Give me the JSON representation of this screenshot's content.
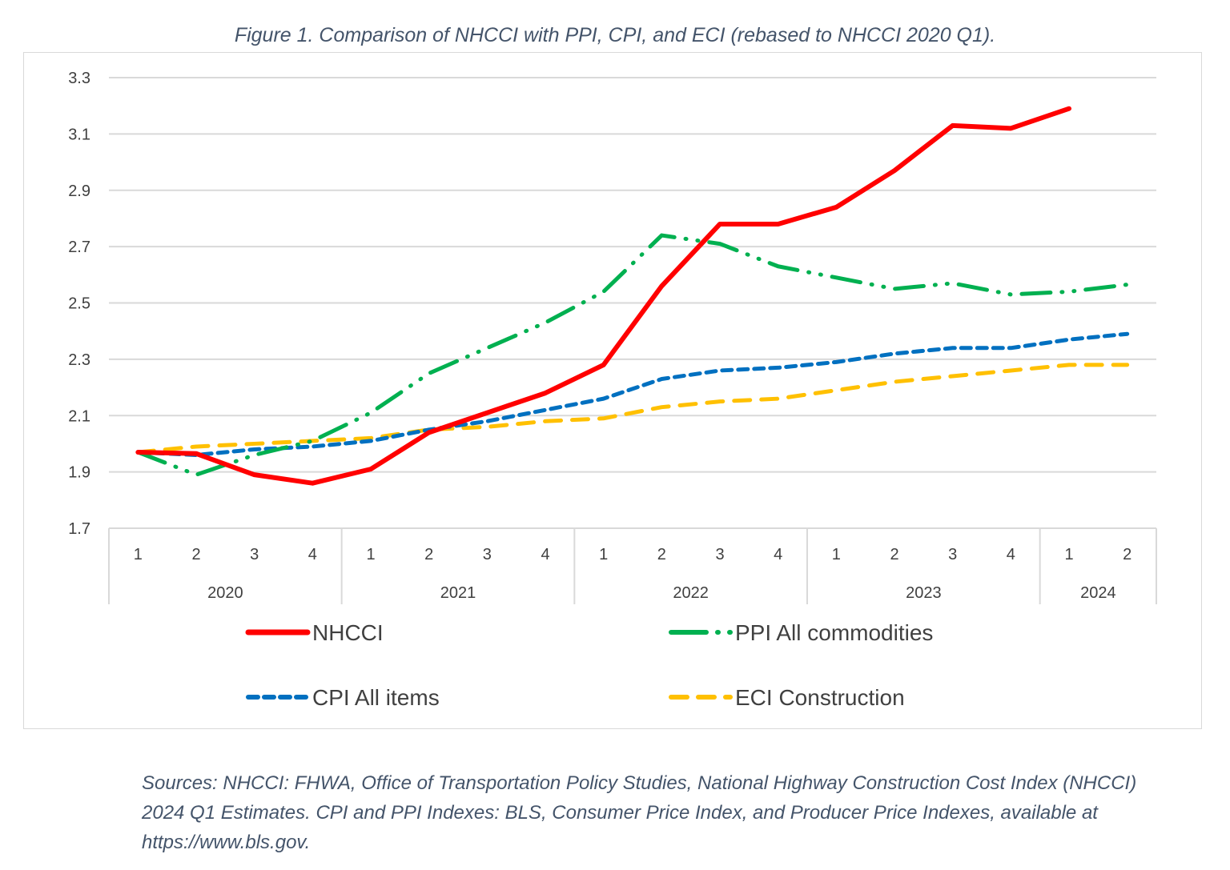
{
  "chart_data": {
    "type": "line",
    "title": "Figure 1. Comparison of NHCCI with PPI, CPI, and ECI (rebased to NHCCI 2020 Q1).",
    "xlabel": "",
    "ylabel": "",
    "ylim": [
      1.7,
      3.3
    ],
    "yticks": [
      "1.7",
      "1.9",
      "2.1",
      "2.3",
      "2.5",
      "2.7",
      "2.9",
      "3.1",
      "3.3"
    ],
    "grid": true,
    "legend_position": "bottom",
    "years": [
      {
        "label": "2020",
        "quarters": [
          "1",
          "2",
          "3",
          "4"
        ]
      },
      {
        "label": "2021",
        "quarters": [
          "1",
          "2",
          "3",
          "4"
        ]
      },
      {
        "label": "2022",
        "quarters": [
          "1",
          "2",
          "3",
          "4"
        ]
      },
      {
        "label": "2023",
        "quarters": [
          "1",
          "2",
          "3",
          "4"
        ]
      },
      {
        "label": "2024",
        "quarters": [
          "1",
          "2"
        ]
      }
    ],
    "series": [
      {
        "name": "NHCCI",
        "color": "#ff0000",
        "style": "solid",
        "values": [
          1.97,
          1.965,
          1.89,
          1.86,
          1.91,
          2.04,
          2.11,
          2.18,
          2.28,
          2.56,
          2.78,
          2.78,
          2.84,
          2.97,
          3.13,
          3.12,
          3.19,
          null
        ]
      },
      {
        "name": "PPI All commodities",
        "color": "#00b050",
        "style": "long-dash-dot-dot",
        "values": [
          1.97,
          1.89,
          1.96,
          2.01,
          2.11,
          2.25,
          2.34,
          2.43,
          2.54,
          2.74,
          2.71,
          2.63,
          2.59,
          2.55,
          2.57,
          2.53,
          2.54,
          2.565
        ]
      },
      {
        "name": "CPI All items",
        "color": "#0070c0",
        "style": "short-dash",
        "values": [
          1.97,
          1.96,
          1.98,
          1.99,
          2.01,
          2.05,
          2.08,
          2.12,
          2.16,
          2.23,
          2.26,
          2.27,
          2.29,
          2.32,
          2.34,
          2.34,
          2.37,
          2.39
        ]
      },
      {
        "name": "ECI Construction",
        "color": "#ffc000",
        "style": "dash",
        "values": [
          1.97,
          1.99,
          2.0,
          2.01,
          2.02,
          2.05,
          2.06,
          2.08,
          2.09,
          2.13,
          2.15,
          2.16,
          2.19,
          2.22,
          2.24,
          2.26,
          2.28,
          2.28
        ]
      }
    ]
  },
  "sources": "Sources: NHCCI: FHWA, Office of Transportation Policy Studies, National Highway Construction Cost Index (NHCCI) 2024 Q1 Estimates. CPI and PPI Indexes: BLS, Consumer Price Index, and Producer Price Indexes, available at https://www.bls.gov."
}
